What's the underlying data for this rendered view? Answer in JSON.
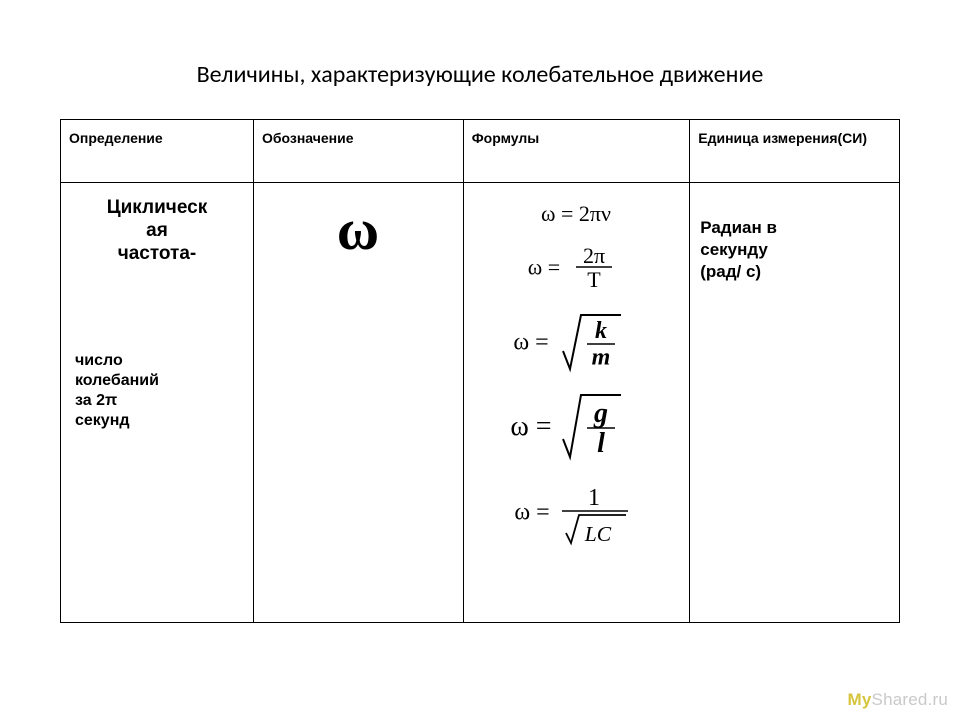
{
  "page": {
    "title": "Величины,  характеризующие колебательное движение"
  },
  "table": {
    "headers": {
      "definition": "Определение",
      "symbol": "Обозначение",
      "formulas": "Формулы",
      "unit": "Единица измерения(СИ)"
    },
    "row": {
      "definition_main": "Циклическ\nая\nчастота-",
      "definition_sub": "число\nколебаний\nза 2π\nсекунд",
      "unit": "Радиан в\nсекунду\n(рад/ с)"
    }
  },
  "formulas": [
    {
      "type": "simple",
      "lhs": "ω",
      "rhs": "2πν",
      "fontsize": 22
    },
    {
      "type": "fraction",
      "lhs": "ω",
      "num": "2π",
      "den": "T",
      "fontsize": 22
    },
    {
      "type": "sqrt_fraction",
      "lhs": "ω",
      "num": "k",
      "den": "m",
      "italic": true,
      "fontsize": 24
    },
    {
      "type": "sqrt_fraction",
      "lhs": "ω",
      "num": "g",
      "den": "l",
      "italic": true,
      "fontsize": 28
    },
    {
      "type": "one_over_sqrt",
      "lhs": "ω",
      "num": "1",
      "under": "LC",
      "fontsize": 24
    }
  ],
  "symbol": {
    "glyph": "ω",
    "fontsize": 48,
    "weight": 900,
    "color": "#000000"
  },
  "colors": {
    "background": "#ffffff",
    "text": "#000000",
    "border": "#000000",
    "watermark_text": "#c9c9c9",
    "watermark_accent": "#d6c53e"
  },
  "watermark": {
    "prefix": "My",
    "rest": "Shared.ru"
  }
}
